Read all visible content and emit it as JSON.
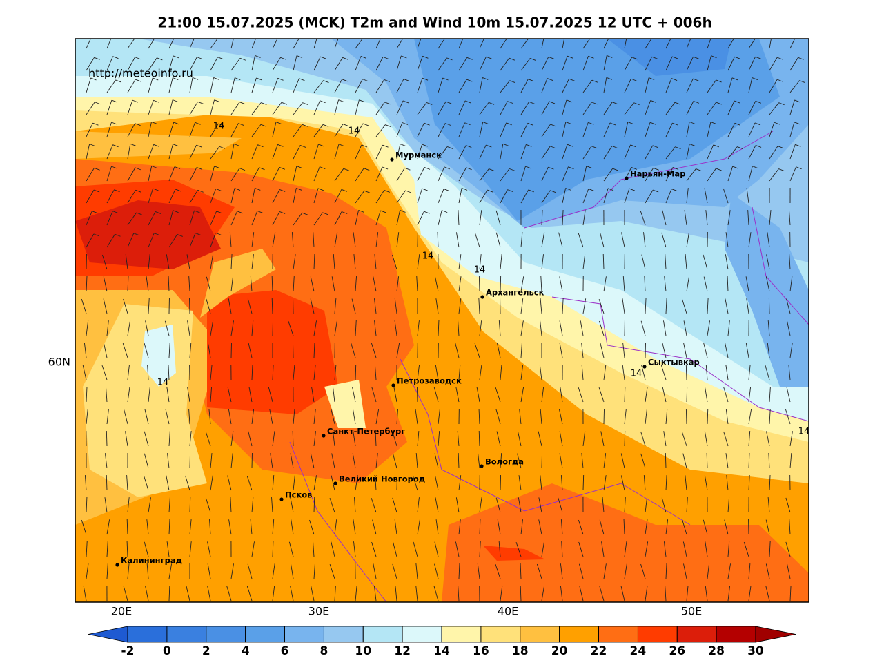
{
  "header": {
    "title": "21:00 15.07.2025 (MCK) T2m and Wind 10m 15.07.2025 12 UTC + 006h"
  },
  "source": "http://meteoinfo.ru",
  "map": {
    "lon_labels": [
      "20E",
      "30E",
      "40E",
      "50E"
    ],
    "lat_labels": [
      "60N"
    ],
    "cities": [
      "Мурманск",
      "Нарьян-Мар",
      "Архангельск",
      "Сыктывкар",
      "Петрозаводск",
      "Санкт-Петербург",
      "Вологда",
      "Великий Новгород",
      "Псков",
      "Калининград"
    ],
    "contour_labels": [
      "14",
      "14",
      "14",
      "14",
      "14",
      "14",
      "14"
    ]
  },
  "colorbar": {
    "ticks": [
      -2,
      0,
      2,
      4,
      6,
      8,
      10,
      12,
      14,
      16,
      18,
      20,
      22,
      24,
      26,
      28,
      30
    ],
    "colors": [
      "#2a6fdb",
      "#3a80e0",
      "#4a90e4",
      "#5aa0e8",
      "#78b4ee",
      "#96c8f0",
      "#b4e6f5",
      "#dcf8fa",
      "#fff5aa",
      "#ffe17a",
      "#ffc040",
      "#ffa000",
      "#ff6e14",
      "#ff3c00",
      "#dc1e0a",
      "#b40000"
    ],
    "extend_colors": [
      "#1e5ad2",
      "#a00000"
    ]
  }
}
